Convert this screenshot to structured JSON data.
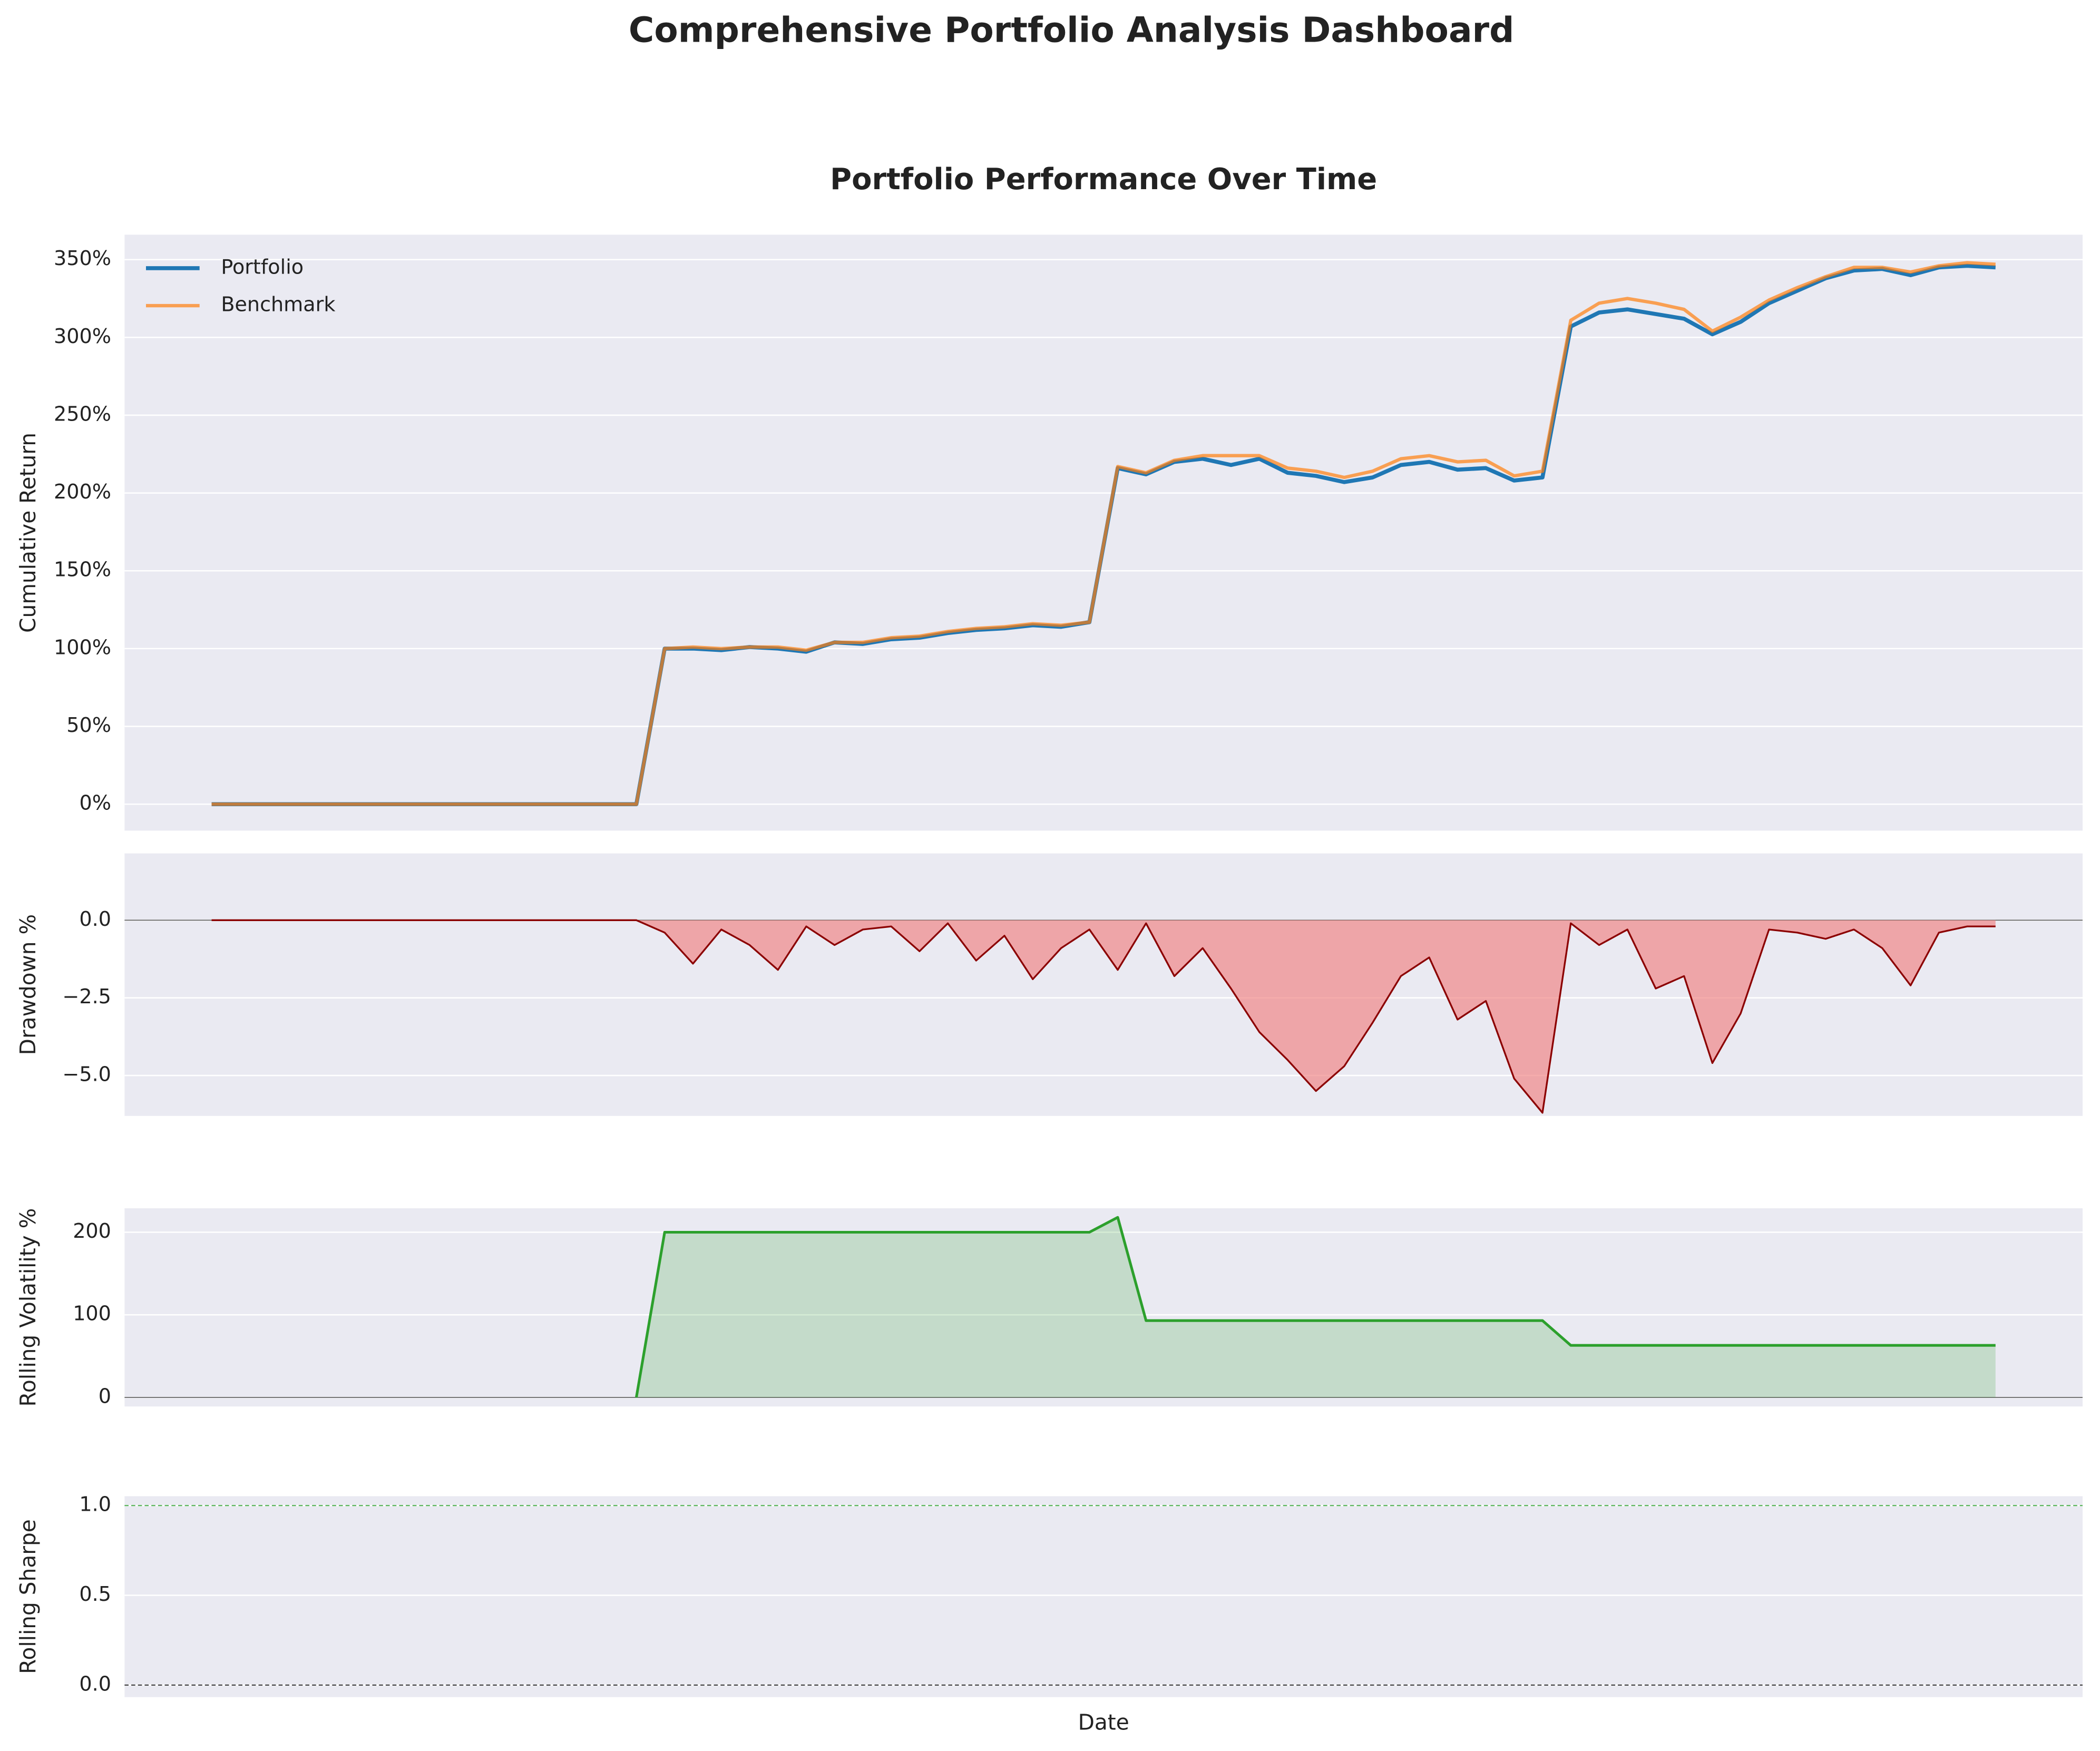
{
  "title": "Comprehensive Portfolio Analysis Dashboard",
  "chart_data": [
    {
      "type": "line",
      "title": "Portfolio Performance Over Time",
      "ylabel": "Cumulative Return",
      "ylim": [
        -17,
        366
      ],
      "yticks": [
        {
          "value": 0,
          "label": "0%"
        },
        {
          "value": 50,
          "label": "50%"
        },
        {
          "value": 100,
          "label": "100%"
        },
        {
          "value": 150,
          "label": "150%"
        },
        {
          "value": 200,
          "label": "200%"
        },
        {
          "value": 250,
          "label": "250%"
        },
        {
          "value": 300,
          "label": "300%"
        },
        {
          "value": 350,
          "label": "350%"
        }
      ],
      "grid": true,
      "legend": "upper left",
      "series": [
        {
          "name": "Portfolio",
          "color": "#1f77b4",
          "width": 3,
          "values": [
            0,
            0,
            0,
            0,
            0,
            0,
            0,
            0,
            0,
            0,
            0,
            0,
            0,
            0,
            0,
            0,
            100,
            100,
            99,
            101,
            100,
            98,
            104,
            103,
            106,
            107,
            110,
            112,
            113,
            115,
            114,
            117,
            216,
            212,
            220,
            222,
            218,
            222,
            213,
            211,
            207,
            210,
            218,
            220,
            215,
            216,
            208,
            210,
            307,
            316,
            318,
            315,
            312,
            302,
            310,
            322,
            330,
            338,
            343,
            344,
            340,
            345,
            346,
            345
          ]
        },
        {
          "name": "Benchmark",
          "color": "#ff7f0e",
          "width": 2.5,
          "opacity": 0.7,
          "values": [
            0,
            0,
            0,
            0,
            0,
            0,
            0,
            0,
            0,
            0,
            0,
            0,
            0,
            0,
            0,
            0,
            100,
            101,
            100,
            101,
            101,
            99,
            104,
            104,
            107,
            108,
            111,
            113,
            114,
            116,
            115,
            117,
            217,
            213,
            221,
            224,
            224,
            224,
            216,
            214,
            210,
            214,
            222,
            224,
            220,
            221,
            211,
            214,
            311,
            322,
            325,
            322,
            318,
            304,
            313,
            324,
            332,
            339,
            345,
            345,
            342,
            346,
            348,
            347
          ]
        }
      ]
    },
    {
      "type": "area",
      "ylabel": "Drawdown %",
      "ylim": [
        -6.3,
        2.15
      ],
      "yticks": [
        {
          "value": -5,
          "label": "−5.0"
        },
        {
          "value": -2.5,
          "label": "−2.5"
        },
        {
          "value": 0,
          "label": "0.0"
        }
      ],
      "grid": true,
      "series": [
        {
          "color": "#8b0000",
          "fill_color": "#f08080",
          "fill_opacity": 0.65,
          "width": 1.3,
          "values": [
            0,
            0,
            0,
            0,
            0,
            0,
            0,
            0,
            0,
            0,
            0,
            0,
            0,
            0,
            0,
            0,
            -0.4,
            -1.4,
            -0.3,
            -0.8,
            -1.6,
            -0.2,
            -0.8,
            -0.3,
            -0.2,
            -1.0,
            -0.1,
            -1.3,
            -0.5,
            -1.9,
            -0.9,
            -0.3,
            -1.6,
            -0.1,
            -1.8,
            -0.9,
            -2.2,
            -3.6,
            -4.5,
            -5.5,
            -4.7,
            -3.3,
            -1.8,
            -1.2,
            -3.2,
            -2.6,
            -5.1,
            -6.2,
            -0.1,
            -0.8,
            -0.3,
            -2.2,
            -1.8,
            -4.6,
            -3.0,
            -0.3,
            -0.4,
            -0.6,
            -0.3,
            -0.9,
            -2.1,
            -0.4,
            -0.2,
            -0.2
          ]
        }
      ]
    },
    {
      "type": "area",
      "ylabel": "Rolling Volatility %",
      "ylim": [
        -11,
        229
      ],
      "yticks": [
        0,
        100,
        200
      ],
      "grid": true,
      "series": [
        {
          "color": "#2ca02c",
          "fill_color": "#2ca02c",
          "fill_opacity": 0.2,
          "width": 2,
          "values": [
            null,
            null,
            null,
            null,
            null,
            null,
            null,
            null,
            null,
            null,
            null,
            null,
            null,
            null,
            null,
            0,
            200,
            200,
            200,
            200,
            200,
            200,
            200,
            200,
            200,
            200,
            200,
            200,
            200,
            200,
            200,
            200,
            218,
            93,
            93,
            93,
            93,
            93,
            93,
            93,
            93,
            93,
            93,
            93,
            93,
            93,
            93,
            93,
            63,
            63,
            63,
            63,
            63,
            63,
            63,
            63,
            63,
            63,
            63,
            63,
            63,
            63,
            63,
            63
          ]
        }
      ]
    },
    {
      "type": "line",
      "ylabel": "Rolling Sharpe",
      "xlabel": "Date",
      "ylim": [
        -0.067,
        1.052
      ],
      "yticks": [
        {
          "value": 0,
          "label": "0.0"
        },
        {
          "value": 0.5,
          "label": "0.5"
        },
        {
          "value": 1,
          "label": "1.0"
        }
      ],
      "grid": true,
      "reference_lines": [
        {
          "value": 0,
          "color": "#000000"
        },
        {
          "value": 1,
          "color": "#2ca02c"
        }
      ],
      "series": []
    }
  ]
}
